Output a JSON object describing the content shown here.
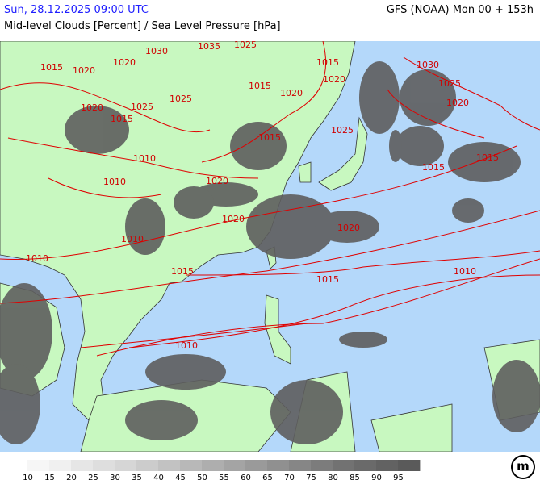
{
  "header": {
    "datetime": "Sun, 28.12.2025 09:00 UTC",
    "model": "GFS (NOAA) Mon 00 + 153h",
    "subtitle": "Mid-level Clouds [Percent] / Sea Level Pressure [hPa]"
  },
  "colors": {
    "ocean": "#b4d8fa",
    "land": "#c8f8c0",
    "isobar": "#e00000",
    "cloud_max": "#5a5a5a",
    "title": "#2020ff"
  },
  "isobar_labels": [
    "1035",
    "1030",
    "1025",
    "1020",
    "1015",
    "1020",
    "1020",
    "1025",
    "1025",
    "1015",
    "1010",
    "1010",
    "1020",
    "1020",
    "1010",
    "1010",
    "1015",
    "1010",
    "1015",
    "1020",
    "1010",
    "1015",
    "1015",
    "1020",
    "1025",
    "1030",
    "1025",
    "1015",
    "1020",
    "1015",
    "1020",
    "1015"
  ],
  "legend": {
    "labels": [
      "10",
      "15",
      "20",
      "25",
      "30",
      "35",
      "40",
      "45",
      "50",
      "55",
      "60",
      "65",
      "70",
      "75",
      "80",
      "85",
      "90",
      "95"
    ],
    "colors": [
      "#ffffff",
      "#f6f6f6",
      "#f0f0f0",
      "#e6e6e6",
      "#dedede",
      "#d6d6d6",
      "#cccccc",
      "#c2c2c2",
      "#b8b8b8",
      "#aeaeae",
      "#a4a4a4",
      "#9a9a9a",
      "#909090",
      "#868686",
      "#7c7c7c",
      "#727272",
      "#6a6a6a",
      "#626262",
      "#5a5a5a"
    ]
  },
  "logo": "m"
}
